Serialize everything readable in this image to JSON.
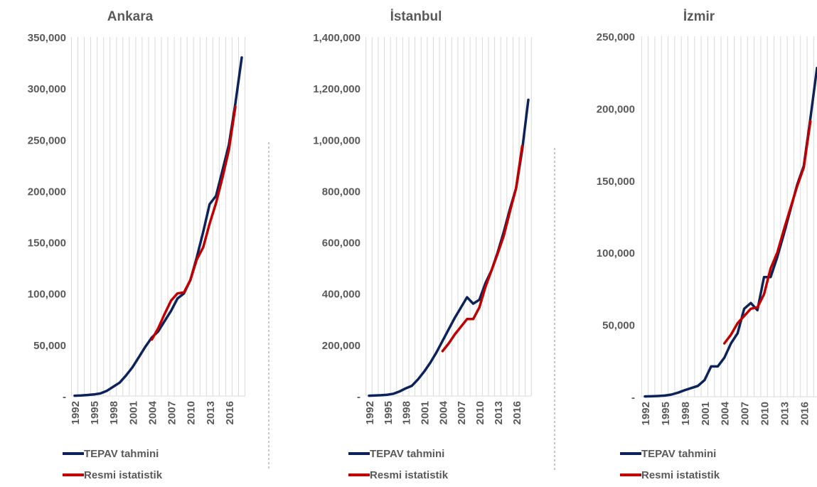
{
  "chart_data": [
    {
      "type": "line",
      "title": "Ankara",
      "xlabel": "",
      "ylabel": "",
      "ylim": [
        0,
        350000
      ],
      "yticks": [
        "-",
        "50,000",
        "100,000",
        "150,000",
        "200,000",
        "250,000",
        "300,000",
        "350,000"
      ],
      "xticks": [
        "1992",
        "1995",
        "1998",
        "2001",
        "2004",
        "2007",
        "2010",
        "2013",
        "2016"
      ],
      "x": [
        1992,
        1993,
        1994,
        1995,
        1996,
        1997,
        1998,
        1999,
        2000,
        2001,
        2002,
        2003,
        2004,
        2005,
        2006,
        2007,
        2008,
        2009,
        2010,
        2011,
        2012,
        2013,
        2014,
        2015,
        2016,
        2017,
        2018
      ],
      "grid": "vertical",
      "legend": "bottom",
      "series": [
        {
          "name": "TEPAV tahmini",
          "color": "#0d2258",
          "values": [
            300,
            500,
            1000,
            1500,
            2500,
            5000,
            9000,
            13000,
            20000,
            28000,
            38000,
            48000,
            57000,
            63000,
            73000,
            83000,
            95000,
            100000,
            113000,
            135000,
            160000,
            187000,
            195000,
            220000,
            245000,
            285000,
            330000
          ]
        },
        {
          "name": "Resmi istatistik",
          "color": "#c00000",
          "values": [
            null,
            null,
            null,
            null,
            null,
            null,
            null,
            null,
            null,
            null,
            null,
            null,
            55000,
            66000,
            80000,
            93000,
            100000,
            101000,
            113000,
            133000,
            145000,
            168000,
            188000,
            213000,
            240000,
            282000,
            null
          ]
        }
      ]
    },
    {
      "type": "line",
      "title": "İstanbul",
      "xlabel": "",
      "ylabel": "",
      "ylim": [
        0,
        1400000
      ],
      "yticks": [
        "-",
        "200,000",
        "400,000",
        "600,000",
        "800,000",
        "1,000,000",
        "1,200,000",
        "1,400,000"
      ],
      "xticks": [
        "1992",
        "1995",
        "1998",
        "2001",
        "2004",
        "2007",
        "2010",
        "2013",
        "2016"
      ],
      "x": [
        1992,
        1993,
        1994,
        1995,
        1996,
        1997,
        1998,
        1999,
        2000,
        2001,
        2002,
        2003,
        2004,
        2005,
        2006,
        2007,
        2008,
        2009,
        2010,
        2011,
        2012,
        2013,
        2014,
        2015,
        2016,
        2017,
        2018
      ],
      "grid": "vertical",
      "legend": "bottom",
      "series": [
        {
          "name": "TEPAV tahmini",
          "color": "#0d2258",
          "values": [
            1000,
            2000,
            3000,
            5000,
            9000,
            18000,
            30000,
            40000,
            65000,
            95000,
            130000,
            170000,
            215000,
            260000,
            305000,
            345000,
            385000,
            360000,
            375000,
            440000,
            490000,
            560000,
            640000,
            730000,
            810000,
            960000,
            1155000
          ]
        },
        {
          "name": "Resmi istatistik",
          "color": "#c00000",
          "values": [
            null,
            null,
            null,
            null,
            null,
            null,
            null,
            null,
            null,
            null,
            null,
            null,
            175000,
            205000,
            240000,
            270000,
            300000,
            300000,
            345000,
            425000,
            490000,
            555000,
            625000,
            720000,
            810000,
            975000,
            null
          ]
        }
      ]
    },
    {
      "type": "line",
      "title": "İzmir",
      "xlabel": "",
      "ylabel": "",
      "ylim": [
        0,
        250000
      ],
      "yticks": [
        "-",
        "50,000",
        "100,000",
        "150,000",
        "200,000",
        "250,000"
      ],
      "xticks": [
        "1992",
        "1995",
        "1998",
        "2001",
        "2004",
        "2007",
        "2010",
        "2013",
        "2016"
      ],
      "x": [
        1992,
        1993,
        1994,
        1995,
        1996,
        1997,
        1998,
        1999,
        2000,
        2001,
        2002,
        2003,
        2004,
        2005,
        2006,
        2007,
        2008,
        2009,
        2010,
        2011,
        2012,
        2013,
        2014,
        2015,
        2016,
        2017,
        2018
      ],
      "grid": "vertical",
      "legend": "bottom",
      "series": [
        {
          "name": "TEPAV tahmini",
          "color": "#0d2258",
          "values": [
            200,
            300,
            500,
            800,
            1500,
            2800,
            4500,
            6000,
            7500,
            11500,
            21000,
            21000,
            27000,
            37000,
            44000,
            61000,
            65000,
            60000,
            83000,
            83000,
            97000,
            113000,
            130000,
            147000,
            160000,
            193000,
            228000
          ]
        },
        {
          "name": "Resmi istatistik",
          "color": "#c00000",
          "values": [
            null,
            null,
            null,
            null,
            null,
            null,
            null,
            null,
            null,
            null,
            null,
            null,
            37000,
            43000,
            51000,
            56000,
            61000,
            62000,
            71000,
            89000,
            100000,
            116000,
            131000,
            146000,
            159000,
            191000,
            null
          ]
        }
      ]
    }
  ]
}
